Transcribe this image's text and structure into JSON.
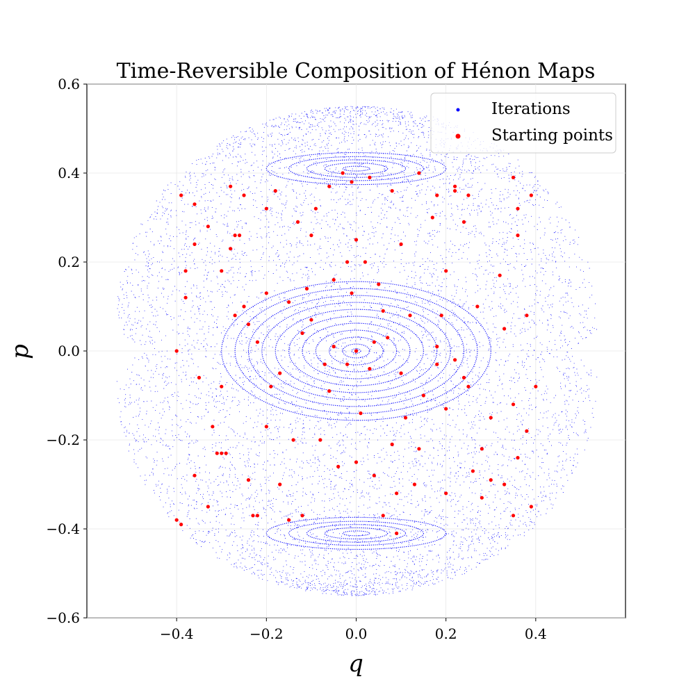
{
  "chart_data": {
    "type": "scatter",
    "title": "Time-Reversible Composition of Hénon Maps",
    "xlabel": "q",
    "ylabel": "p",
    "xlim": [
      -0.6,
      0.6
    ],
    "ylim": [
      -0.6,
      0.6
    ],
    "xticks": [
      -0.4,
      -0.2,
      0.0,
      0.2,
      0.4
    ],
    "xtick_labels": [
      "−0.4",
      "−0.2",
      "0.0",
      "0.2",
      "0.4"
    ],
    "yticks": [
      0.6,
      0.4,
      0.2,
      0.0,
      -0.2,
      -0.4,
      -0.6
    ],
    "ytick_labels": [
      "0.6",
      "0.4",
      "0.2",
      "0.0",
      "−0.2",
      "−0.4",
      "−0.6"
    ],
    "grid": true,
    "legend_position": "top-right",
    "series": [
      {
        "name": "Iterations",
        "color": "#0000ff",
        "description_shape": "dense phase portrait: nested elliptical invariant curves around (0,0), island chains centered near (0,0.41) and (0,-0.41), chaotic sea filling |q|<=0.54, |p|<=0.55",
        "regions": [
          {
            "kind": "central-ellipses",
            "center": [
              0.0,
              0.0
            ],
            "semi_axes_q": [
              0.01,
              0.03,
              0.06,
              0.09,
              0.12,
              0.15,
              0.18,
              0.21,
              0.24,
              0.27,
              0.3
            ],
            "aspect_p_over_q": 0.52
          },
          {
            "kind": "upper-island",
            "center": [
              0.0,
              0.41
            ],
            "semi_axes_q": [
              0.03,
              0.07,
              0.11,
              0.15,
              0.2
            ],
            "aspect_p_over_q": 0.18
          },
          {
            "kind": "lower-island",
            "center": [
              0.0,
              -0.41
            ],
            "semi_axes_q": [
              0.03,
              0.07,
              0.11,
              0.15,
              0.2
            ],
            "aspect_p_over_q": 0.18
          },
          {
            "kind": "outer-boundary",
            "q_max": 0.54,
            "p_max": 0.55
          }
        ]
      },
      {
        "name": "Starting points",
        "color": "#ff0000",
        "points": [
          [
            0.0,
            0.0
          ],
          [
            -0.05,
            0.01
          ],
          [
            -0.02,
            -0.03
          ],
          [
            0.03,
            -0.04
          ],
          [
            0.04,
            0.02
          ],
          [
            -0.07,
            -0.03
          ],
          [
            0.07,
            0.03
          ],
          [
            -0.12,
            0.04
          ],
          [
            0.1,
            -0.05
          ],
          [
            -0.1,
            0.07
          ],
          [
            0.12,
            0.08
          ],
          [
            -0.17,
            -0.05
          ],
          [
            0.18,
            0.01
          ],
          [
            0.18,
            -0.03
          ],
          [
            -0.22,
            0.02
          ],
          [
            0.22,
            -0.02
          ],
          [
            -0.25,
            0.1
          ],
          [
            0.25,
            -0.08
          ],
          [
            -0.27,
            0.08
          ],
          [
            0.27,
            0.1
          ],
          [
            -0.3,
            -0.08
          ],
          [
            0.33,
            0.05
          ],
          [
            -0.35,
            -0.06
          ],
          [
            0.35,
            -0.12
          ],
          [
            -0.4,
            0.0
          ],
          [
            0.38,
            0.08
          ],
          [
            -0.38,
            0.12
          ],
          [
            0.4,
            -0.08
          ],
          [
            -0.32,
            -0.17
          ],
          [
            0.32,
            0.17
          ],
          [
            -0.28,
            0.23
          ],
          [
            0.28,
            -0.22
          ],
          [
            -0.3,
            -0.23
          ],
          [
            -0.31,
            -0.23
          ],
          [
            -0.29,
            -0.23
          ],
          [
            -0.26,
            0.26
          ],
          [
            -0.27,
            0.26
          ],
          [
            0.26,
            -0.27
          ],
          [
            -0.2,
            0.32
          ],
          [
            0.2,
            -0.32
          ],
          [
            -0.13,
            0.29
          ],
          [
            0.13,
            -0.3
          ],
          [
            -0.06,
            0.37
          ],
          [
            0.06,
            -0.37
          ],
          [
            0.03,
            0.39
          ],
          [
            -0.01,
            0.38
          ],
          [
            -0.03,
            0.4
          ],
          [
            0.08,
            0.36
          ],
          [
            0.14,
            0.4
          ],
          [
            -0.15,
            -0.38
          ],
          [
            -0.12,
            -0.37
          ],
          [
            0.09,
            -0.41
          ],
          [
            -0.22,
            -0.37
          ],
          [
            -0.23,
            -0.37
          ],
          [
            0.22,
            0.37
          ],
          [
            0.22,
            0.36
          ],
          [
            -0.39,
            0.35
          ],
          [
            0.39,
            0.35
          ],
          [
            -0.39,
            -0.39
          ],
          [
            0.39,
            -0.35
          ],
          [
            -0.4,
            -0.38
          ],
          [
            0.35,
            -0.37
          ],
          [
            0.35,
            0.39
          ],
          [
            -0.36,
            0.33
          ],
          [
            0.36,
            0.32
          ],
          [
            -0.33,
            -0.35
          ],
          [
            0.3,
            -0.29
          ],
          [
            -0.25,
            0.35
          ],
          [
            0.25,
            0.35
          ],
          [
            -0.18,
            0.36
          ],
          [
            0.18,
            0.35
          ],
          [
            -0.1,
            0.26
          ],
          [
            0.1,
            0.24
          ],
          [
            -0.05,
            0.16
          ],
          [
            0.05,
            0.15
          ],
          [
            -0.02,
            0.2
          ],
          [
            0.02,
            0.2
          ],
          [
            -0.08,
            -0.2
          ],
          [
            0.08,
            -0.21
          ],
          [
            -0.04,
            -0.26
          ],
          [
            0.04,
            -0.28
          ],
          [
            -0.14,
            -0.2
          ],
          [
            0.14,
            -0.22
          ],
          [
            -0.2,
            -0.17
          ],
          [
            0.2,
            0.18
          ],
          [
            -0.2,
            0.13
          ],
          [
            0.2,
            -0.13
          ],
          [
            -0.15,
            0.11
          ],
          [
            0.15,
            -0.1
          ],
          [
            -0.33,
            0.28
          ],
          [
            0.33,
            -0.3
          ],
          [
            -0.3,
            0.18
          ],
          [
            0.3,
            -0.15
          ],
          [
            -0.28,
            0.37
          ],
          [
            0.28,
            -0.33
          ],
          [
            -0.24,
            -0.29
          ],
          [
            0.24,
            0.29
          ],
          [
            -0.17,
            -0.3
          ],
          [
            0.17,
            0.3
          ],
          [
            -0.09,
            0.32
          ],
          [
            0.09,
            -0.32
          ],
          [
            0.0,
            0.25
          ],
          [
            0.0,
            -0.25
          ],
          [
            -0.01,
            0.13
          ],
          [
            0.01,
            -0.14
          ],
          [
            -0.06,
            -0.09
          ],
          [
            0.06,
            0.09
          ],
          [
            -0.11,
            0.14
          ],
          [
            0.11,
            -0.15
          ],
          [
            -0.36,
            0.24
          ],
          [
            0.36,
            -0.24
          ],
          [
            -0.38,
            0.18
          ],
          [
            0.38,
            -0.18
          ],
          [
            -0.36,
            -0.28
          ],
          [
            0.36,
            0.26
          ],
          [
            -0.24,
            0.06
          ],
          [
            0.24,
            -0.06
          ],
          [
            -0.19,
            -0.08
          ],
          [
            0.19,
            0.08
          ]
        ]
      }
    ]
  }
}
